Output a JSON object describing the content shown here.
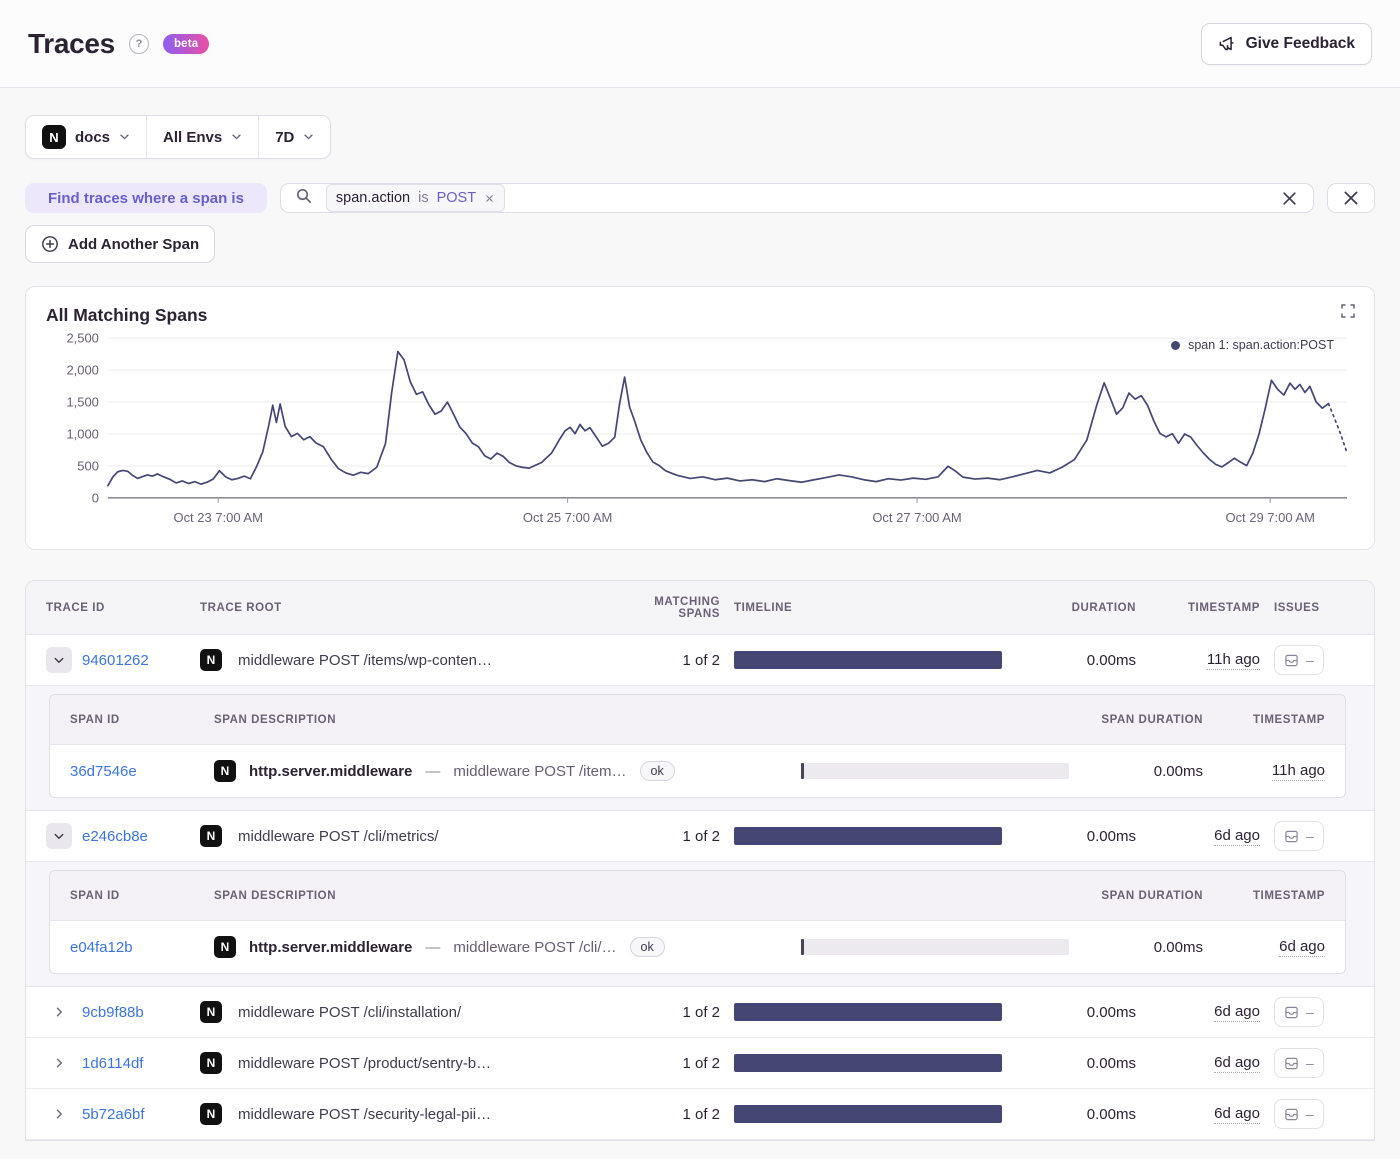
{
  "header": {
    "title": "Traces",
    "help_glyph": "?",
    "beta_label": "beta",
    "feedback_label": "Give Feedback"
  },
  "filters": {
    "project_letter": "N",
    "project_label": "docs",
    "env_label": "All Envs",
    "period_label": "7D"
  },
  "search": {
    "find_label": "Find traces where a span is",
    "token": {
      "key": "span.action",
      "op": "is",
      "value": "POST"
    },
    "add_span_label": "Add Another Span"
  },
  "chart": {
    "title": "All Matching Spans",
    "legend_label": "span 1: span.action:POST",
    "line_color": "#444674"
  },
  "chart_data": {
    "type": "line",
    "title": "All Matching Spans",
    "ylim": [
      0,
      2500
    ],
    "grid": true,
    "legend_position": "top-right",
    "y_ticks": [
      {
        "value": 0,
        "label": "0"
      },
      {
        "value": 500,
        "label": "500"
      },
      {
        "value": 1000,
        "label": "1,000"
      },
      {
        "value": 1500,
        "label": "1,500"
      },
      {
        "value": 2000,
        "label": "2,000"
      },
      {
        "value": 2500,
        "label": "2,500"
      }
    ],
    "x_ticks": [
      {
        "label": "Oct 23 7:00 AM",
        "pos": 0.089
      },
      {
        "label": "Oct 25 7:00 AM",
        "pos": 0.371
      },
      {
        "label": "Oct 27 7:00 AM",
        "pos": 0.653
      },
      {
        "label": "Oct 29 7:00 AM",
        "pos": 0.938
      }
    ],
    "series": [
      {
        "name": "span 1: span.action:POST",
        "color": "#444674",
        "points": [
          [
            0.0,
            190
          ],
          [
            0.004,
            330
          ],
          [
            0.008,
            410
          ],
          [
            0.012,
            430
          ],
          [
            0.016,
            415
          ],
          [
            0.02,
            350
          ],
          [
            0.024,
            305
          ],
          [
            0.028,
            335
          ],
          [
            0.032,
            360
          ],
          [
            0.036,
            340
          ],
          [
            0.04,
            375
          ],
          [
            0.045,
            330
          ],
          [
            0.05,
            290
          ],
          [
            0.055,
            235
          ],
          [
            0.06,
            265
          ],
          [
            0.065,
            225
          ],
          [
            0.07,
            255
          ],
          [
            0.075,
            215
          ],
          [
            0.08,
            245
          ],
          [
            0.085,
            295
          ],
          [
            0.09,
            425
          ],
          [
            0.095,
            330
          ],
          [
            0.1,
            285
          ],
          [
            0.105,
            305
          ],
          [
            0.11,
            340
          ],
          [
            0.115,
            300
          ],
          [
            0.12,
            490
          ],
          [
            0.125,
            720
          ],
          [
            0.13,
            1150
          ],
          [
            0.133,
            1450
          ],
          [
            0.136,
            1180
          ],
          [
            0.139,
            1470
          ],
          [
            0.143,
            1120
          ],
          [
            0.148,
            960
          ],
          [
            0.153,
            1010
          ],
          [
            0.158,
            910
          ],
          [
            0.163,
            960
          ],
          [
            0.168,
            860
          ],
          [
            0.174,
            800
          ],
          [
            0.18,
            610
          ],
          [
            0.186,
            460
          ],
          [
            0.192,
            390
          ],
          [
            0.198,
            355
          ],
          [
            0.204,
            400
          ],
          [
            0.21,
            380
          ],
          [
            0.217,
            480
          ],
          [
            0.224,
            850
          ],
          [
            0.229,
            1650
          ],
          [
            0.234,
            2290
          ],
          [
            0.239,
            2160
          ],
          [
            0.244,
            1820
          ],
          [
            0.249,
            1620
          ],
          [
            0.254,
            1660
          ],
          [
            0.259,
            1460
          ],
          [
            0.264,
            1310
          ],
          [
            0.269,
            1360
          ],
          [
            0.274,
            1500
          ],
          [
            0.279,
            1310
          ],
          [
            0.284,
            1110
          ],
          [
            0.289,
            1010
          ],
          [
            0.294,
            860
          ],
          [
            0.299,
            800
          ],
          [
            0.304,
            660
          ],
          [
            0.309,
            610
          ],
          [
            0.314,
            700
          ],
          [
            0.319,
            650
          ],
          [
            0.324,
            555
          ],
          [
            0.329,
            505
          ],
          [
            0.334,
            480
          ],
          [
            0.34,
            465
          ],
          [
            0.35,
            555
          ],
          [
            0.358,
            700
          ],
          [
            0.364,
            900
          ],
          [
            0.369,
            1050
          ],
          [
            0.373,
            1105
          ],
          [
            0.377,
            1005
          ],
          [
            0.381,
            1150
          ],
          [
            0.385,
            1050
          ],
          [
            0.389,
            1100
          ],
          [
            0.394,
            955
          ],
          [
            0.399,
            810
          ],
          [
            0.404,
            855
          ],
          [
            0.409,
            950
          ],
          [
            0.413,
            1480
          ],
          [
            0.417,
            1890
          ],
          [
            0.421,
            1420
          ],
          [
            0.425,
            1210
          ],
          [
            0.43,
            910
          ],
          [
            0.435,
            710
          ],
          [
            0.44,
            560
          ],
          [
            0.445,
            505
          ],
          [
            0.45,
            425
          ],
          [
            0.455,
            385
          ],
          [
            0.46,
            350
          ],
          [
            0.47,
            305
          ],
          [
            0.48,
            330
          ],
          [
            0.49,
            285
          ],
          [
            0.5,
            310
          ],
          [
            0.51,
            265
          ],
          [
            0.52,
            285
          ],
          [
            0.53,
            255
          ],
          [
            0.54,
            300
          ],
          [
            0.55,
            270
          ],
          [
            0.56,
            245
          ],
          [
            0.57,
            285
          ],
          [
            0.58,
            320
          ],
          [
            0.59,
            360
          ],
          [
            0.6,
            330
          ],
          [
            0.61,
            285
          ],
          [
            0.62,
            255
          ],
          [
            0.63,
            300
          ],
          [
            0.64,
            280
          ],
          [
            0.65,
            310
          ],
          [
            0.66,
            290
          ],
          [
            0.67,
            330
          ],
          [
            0.678,
            495
          ],
          [
            0.684,
            420
          ],
          [
            0.69,
            325
          ],
          [
            0.7,
            295
          ],
          [
            0.71,
            310
          ],
          [
            0.72,
            285
          ],
          [
            0.73,
            330
          ],
          [
            0.74,
            380
          ],
          [
            0.75,
            430
          ],
          [
            0.76,
            390
          ],
          [
            0.77,
            480
          ],
          [
            0.78,
            600
          ],
          [
            0.79,
            905
          ],
          [
            0.798,
            1450
          ],
          [
            0.804,
            1800
          ],
          [
            0.809,
            1560
          ],
          [
            0.814,
            1310
          ],
          [
            0.819,
            1410
          ],
          [
            0.824,
            1640
          ],
          [
            0.829,
            1545
          ],
          [
            0.834,
            1600
          ],
          [
            0.839,
            1450
          ],
          [
            0.844,
            1210
          ],
          [
            0.849,
            1010
          ],
          [
            0.854,
            955
          ],
          [
            0.859,
            1005
          ],
          [
            0.864,
            855
          ],
          [
            0.869,
            1000
          ],
          [
            0.874,
            950
          ],
          [
            0.879,
            820
          ],
          [
            0.884,
            705
          ],
          [
            0.889,
            605
          ],
          [
            0.894,
            525
          ],
          [
            0.899,
            485
          ],
          [
            0.904,
            550
          ],
          [
            0.909,
            620
          ],
          [
            0.914,
            560
          ],
          [
            0.919,
            505
          ],
          [
            0.924,
            700
          ],
          [
            0.929,
            1000
          ],
          [
            0.934,
            1400
          ],
          [
            0.939,
            1840
          ],
          [
            0.944,
            1700
          ],
          [
            0.949,
            1610
          ],
          [
            0.954,
            1795
          ],
          [
            0.958,
            1700
          ],
          [
            0.962,
            1775
          ],
          [
            0.966,
            1650
          ],
          [
            0.97,
            1745
          ],
          [
            0.975,
            1505
          ],
          [
            0.98,
            1405
          ],
          [
            0.985,
            1475
          ]
        ],
        "points_dashed": [
          [
            0.985,
            1475
          ],
          [
            0.99,
            1240
          ],
          [
            0.995,
            990
          ],
          [
            1.0,
            705
          ]
        ]
      }
    ]
  },
  "table": {
    "columns": [
      "TRACE ID",
      "TRACE ROOT",
      "MATCHING SPANS",
      "TIMELINE",
      "DURATION",
      "TIMESTAMP",
      "ISSUES"
    ],
    "span_columns": [
      "SPAN ID",
      "SPAN DESCRIPTION",
      "SPAN DURATION",
      "TIMESTAMP"
    ],
    "issues_dash": "–",
    "sep": "—",
    "rows": [
      {
        "trace_id": "94601262",
        "root": "middleware POST /items/wp-conten…",
        "matching": "1 of 2",
        "duration": "0.00ms",
        "timestamp": "11h ago",
        "expanded": true,
        "spans": [
          {
            "span_id": "36d7546e",
            "op": "http.server.middleware",
            "desc": "middleware POST /item…",
            "status": "ok",
            "duration": "0.00ms",
            "timestamp": "11h ago"
          }
        ]
      },
      {
        "trace_id": "e246cb8e",
        "root": "middleware POST /cli/metrics/",
        "matching": "1 of 2",
        "duration": "0.00ms",
        "timestamp": "6d ago",
        "expanded": true,
        "spans": [
          {
            "span_id": "e04fa12b",
            "op": "http.server.middleware",
            "desc": "middleware POST /cli/…",
            "status": "ok",
            "duration": "0.00ms",
            "timestamp": "6d ago"
          }
        ]
      },
      {
        "trace_id": "9cb9f88b",
        "root": "middleware POST /cli/installation/",
        "matching": "1 of 2",
        "duration": "0.00ms",
        "timestamp": "6d ago",
        "expanded": false
      },
      {
        "trace_id": "1d6114df",
        "root": "middleware POST /product/sentry-b…",
        "matching": "1 of 2",
        "duration": "0.00ms",
        "timestamp": "6d ago",
        "expanded": false
      },
      {
        "trace_id": "5b72a6bf",
        "root": "middleware POST /security-legal-pii…",
        "matching": "1 of 2",
        "duration": "0.00ms",
        "timestamp": "6d ago",
        "expanded": false
      }
    ]
  },
  "colors": {
    "accent_purple": "#6a5ec9",
    "link_blue": "#3c74dd",
    "bar_navy": "#444674",
    "beta_gradient_start": "#8d5ff1",
    "beta_gradient_end": "#ea4ea3"
  }
}
